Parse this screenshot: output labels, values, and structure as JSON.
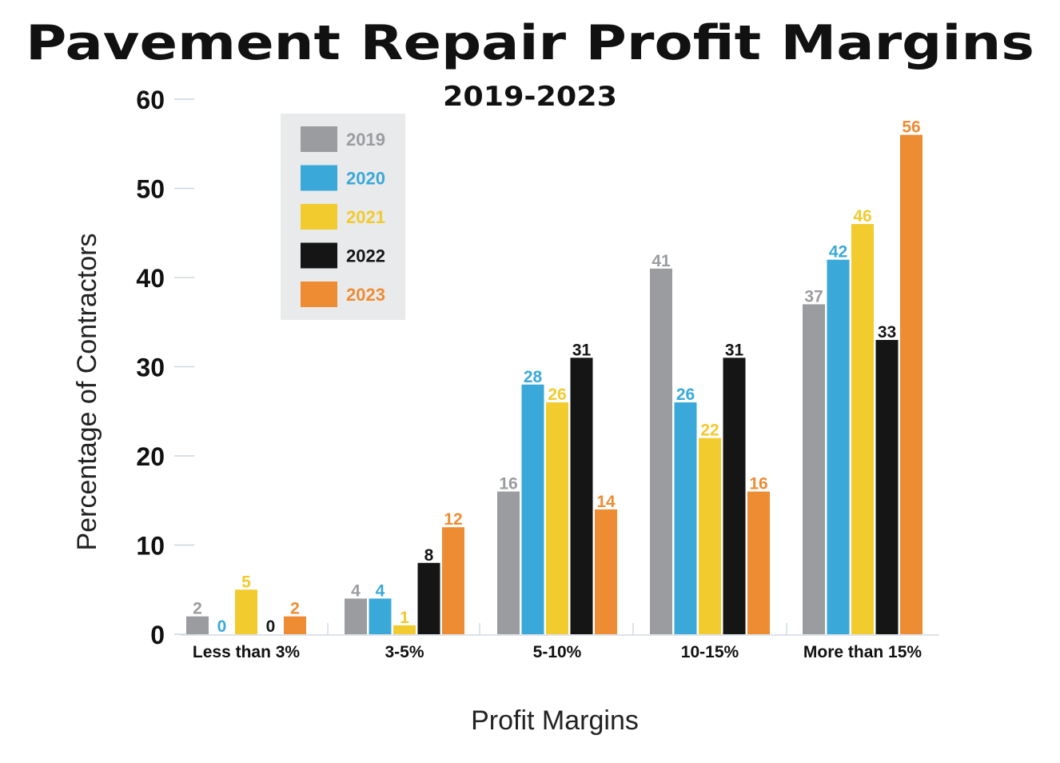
{
  "chart_data": {
    "type": "bar",
    "title": "Pavement Repair Profit Margins",
    "subtitle": "2019-2023",
    "xlabel": "Profit Margins",
    "ylabel": "Percentage of Contractors",
    "ylim": [
      0,
      60
    ],
    "yticks": [
      "0",
      "10",
      "20",
      "30",
      "40",
      "50",
      "60"
    ],
    "grid": false,
    "legend_position": "top-left",
    "categories": [
      "Less than 3%",
      "3-5%",
      "5-10%",
      "10-15%",
      "More than 15%"
    ],
    "series": [
      {
        "name": "2019",
        "color": "#9a9ca0",
        "values": [
          2,
          4,
          16,
          41,
          37
        ]
      },
      {
        "name": "2020",
        "color": "#3aa9d9",
        "values": [
          0,
          4,
          28,
          26,
          42
        ]
      },
      {
        "name": "2021",
        "color": "#f2cb2e",
        "values": [
          5,
          1,
          26,
          22,
          46
        ]
      },
      {
        "name": "2022",
        "color": "#151515",
        "values": [
          0,
          8,
          31,
          31,
          33
        ]
      },
      {
        "name": "2023",
        "color": "#ee8c34",
        "values": [
          2,
          12,
          14,
          16,
          56
        ]
      }
    ]
  }
}
